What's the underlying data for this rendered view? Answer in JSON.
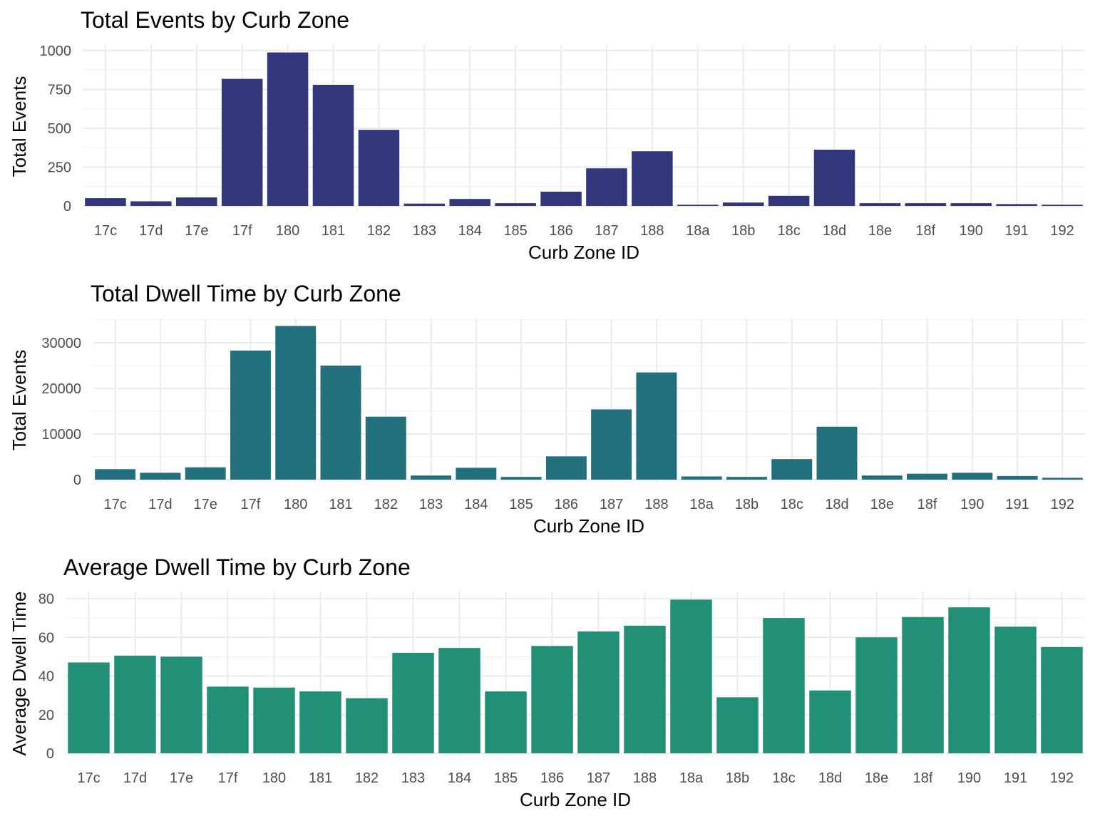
{
  "chart_data": [
    {
      "type": "bar",
      "title": "Total Events by Curb Zone",
      "xlabel": "Curb Zone ID",
      "ylabel": "Total Events",
      "categories": [
        "17c",
        "17d",
        "17e",
        "17f",
        "180",
        "181",
        "182",
        "183",
        "184",
        "185",
        "186",
        "187",
        "188",
        "18a",
        "18b",
        "18c",
        "18d",
        "18e",
        "18f",
        "190",
        "191",
        "192"
      ],
      "values": [
        50,
        30,
        55,
        818,
        988,
        780,
        490,
        15,
        45,
        18,
        92,
        242,
        352,
        8,
        22,
        65,
        362,
        18,
        18,
        18,
        12,
        8
      ],
      "ylim": [
        0,
        1000
      ],
      "yticks": [
        0,
        250,
        500,
        750,
        1000
      ],
      "color": "#31367A",
      "grid": true
    },
    {
      "type": "bar",
      "title": "Total Dwell Time by Curb Zone",
      "xlabel": "Curb Zone ID",
      "ylabel": "Total Events",
      "categories": [
        "17c",
        "17d",
        "17e",
        "17f",
        "180",
        "181",
        "182",
        "183",
        "184",
        "185",
        "186",
        "187",
        "188",
        "18a",
        "18b",
        "18c",
        "18d",
        "18e",
        "18f",
        "190",
        "191",
        "192"
      ],
      "values": [
        2300,
        1500,
        2700,
        28300,
        33700,
        25000,
        13800,
        900,
        2600,
        600,
        5100,
        15400,
        23500,
        700,
        600,
        4500,
        11600,
        900,
        1300,
        1500,
        800,
        400
      ],
      "ylim": [
        0,
        30000
      ],
      "yticks": [
        0,
        10000,
        20000,
        30000
      ],
      "color": "#21707B",
      "grid": true
    },
    {
      "type": "bar",
      "title": "Average Dwell Time by Curb Zone",
      "xlabel": "Curb Zone ID",
      "ylabel": "Average Dwell Time",
      "categories": [
        "17c",
        "17d",
        "17e",
        "17f",
        "180",
        "181",
        "182",
        "183",
        "184",
        "185",
        "186",
        "187",
        "188",
        "18a",
        "18b",
        "18c",
        "18d",
        "18e",
        "18f",
        "190",
        "191",
        "192"
      ],
      "values": [
        47,
        50.5,
        50,
        34.5,
        34,
        32,
        28.5,
        52,
        54.5,
        32,
        55.5,
        63,
        66,
        79.5,
        29,
        70,
        32.5,
        60,
        70.5,
        75.5,
        65.5,
        55
      ],
      "ylim": [
        0,
        80
      ],
      "yticks": [
        0,
        20,
        40,
        60,
        80
      ],
      "color": "#219076",
      "grid": true
    }
  ]
}
